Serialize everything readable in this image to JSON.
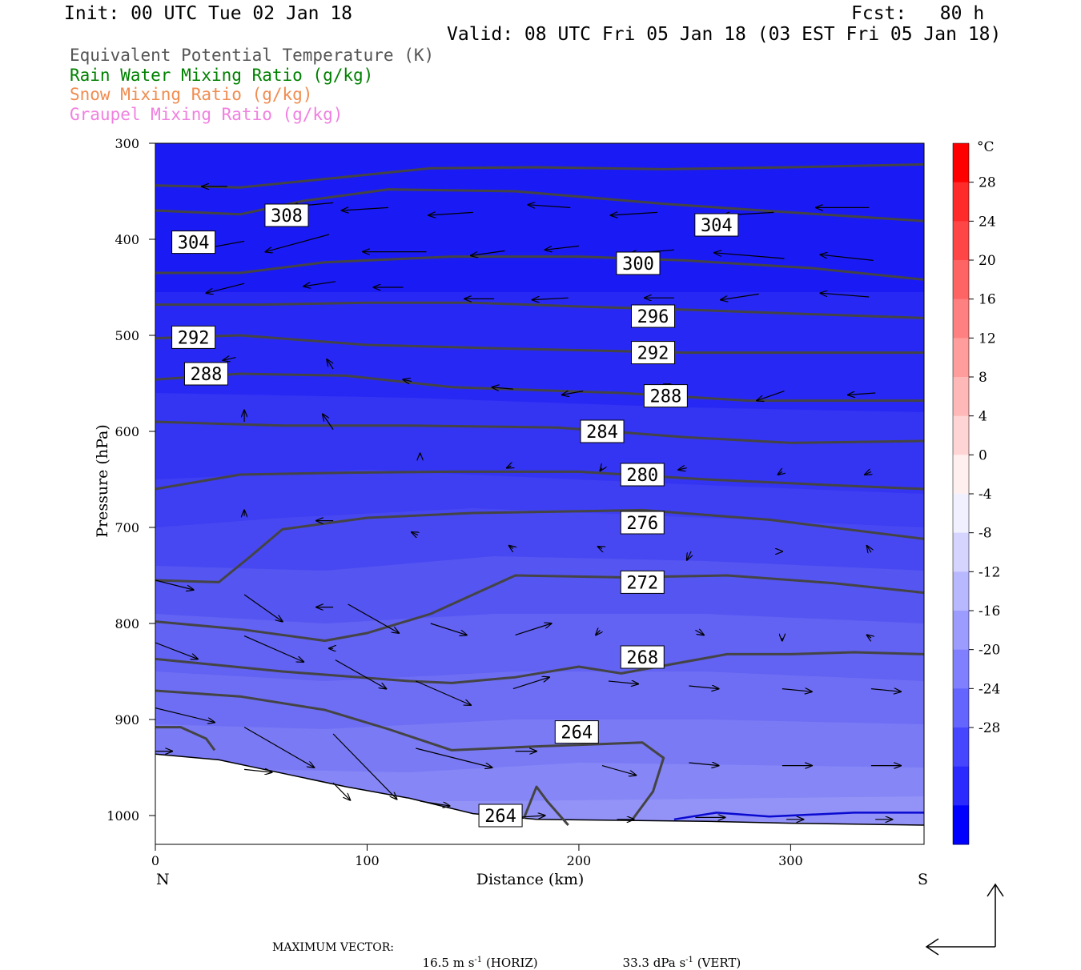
{
  "header": {
    "init": "Init: 00 UTC Tue 02 Jan 18",
    "fcst": "Fcst:   80 h",
    "valid": "Valid: 08 UTC Fri 05 Jan 18 (03 EST Fri 05 Jan 18)"
  },
  "legend": [
    {
      "label": "Equivalent Potential Temperature (K)",
      "color": "#555555"
    },
    {
      "label": "Rain Water Mixing Ratio (g/kg)",
      "color": "#008000"
    },
    {
      "label": "Snow Mixing Ratio (g/kg)",
      "color": "#f08c50"
    },
    {
      "label": "Graupel Mixing Ratio (g/kg)",
      "color": "#f080e0"
    }
  ],
  "footer": {
    "max_vector_label": "MAXIMUM VECTOR:",
    "horiz_value": "16.5 m s",
    "horiz_unit_exp": "-1",
    "horiz_tag": "(HORIZ)",
    "vert_value": "33.3 dPa s",
    "vert_unit_exp": "-1",
    "vert_tag": "(VERT)"
  },
  "chart_data": {
    "type": "cross-section contour",
    "xlabel": "Distance (km)",
    "ylabel": "Pressure (hPa)",
    "xlim": [
      0,
      363
    ],
    "ylim": [
      1030,
      300
    ],
    "xticks": [
      0,
      100,
      200,
      300
    ],
    "yticks": [
      300,
      400,
      500,
      600,
      700,
      800,
      900,
      1000
    ],
    "x_end_labels": {
      "left": "N",
      "right": "S"
    },
    "colorbar": {
      "unit": "°C",
      "labels": [
        "28",
        "24",
        "20",
        "16",
        "12",
        "8",
        "4",
        "0",
        "-4",
        "-8",
        "-12",
        "-16",
        "-20",
        "-24",
        "-28"
      ],
      "levels": [
        28,
        24,
        20,
        16,
        12,
        8,
        4,
        0,
        -4,
        -8,
        -12,
        -16,
        -20,
        -24,
        -28
      ],
      "colors": [
        "#ff0000",
        "#ff2a2a",
        "#ff4646",
        "#ff6464",
        "#ff8080",
        "#ff9c9c",
        "#ffb8b8",
        "#ffd4d4",
        "#fff0f0",
        "#f0f0ff",
        "#d4d4ff",
        "#b8b8ff",
        "#9c9cff",
        "#8080ff",
        "#6464ff",
        "#4646ff",
        "#2a2aff",
        "#0000ff"
      ]
    },
    "theta_e_contours": [
      {
        "label": "308",
        "points": [
          [
            0,
            344
          ],
          [
            40,
            346
          ],
          [
            90,
            335
          ],
          [
            130,
            326
          ],
          [
            180,
            325
          ],
          [
            240,
            327
          ],
          [
            300,
            325
          ],
          [
            363,
            322
          ]
        ]
      },
      {
        "label": "304",
        "points": [
          [
            0,
            370
          ],
          [
            40,
            374
          ],
          [
            70,
            360
          ],
          [
            110,
            348
          ],
          [
            170,
            350
          ],
          [
            240,
            363
          ],
          [
            300,
            372
          ],
          [
            363,
            381
          ]
        ]
      },
      {
        "label": "300",
        "points": [
          [
            0,
            435
          ],
          [
            40,
            435
          ],
          [
            80,
            424
          ],
          [
            140,
            418
          ],
          [
            200,
            418
          ],
          [
            250,
            422
          ],
          [
            310,
            430
          ],
          [
            363,
            442
          ]
        ]
      },
      {
        "label": "296",
        "points": [
          [
            0,
            468
          ],
          [
            50,
            468
          ],
          [
            100,
            466
          ],
          [
            150,
            466
          ],
          [
            200,
            470
          ],
          [
            260,
            474
          ],
          [
            310,
            478
          ],
          [
            363,
            482
          ]
        ]
      },
      {
        "label": "292",
        "points": [
          [
            0,
            503
          ],
          [
            40,
            500
          ],
          [
            100,
            510
          ],
          [
            170,
            514
          ],
          [
            250,
            518
          ],
          [
            310,
            518
          ],
          [
            363,
            518
          ]
        ]
      },
      {
        "label": "288",
        "points": [
          [
            0,
            546
          ],
          [
            40,
            540
          ],
          [
            90,
            542
          ],
          [
            140,
            554
          ],
          [
            220,
            560
          ],
          [
            280,
            568
          ],
          [
            363,
            568
          ]
        ]
      },
      {
        "label": "284",
        "points": [
          [
            0,
            590
          ],
          [
            60,
            594
          ],
          [
            120,
            594
          ],
          [
            190,
            596
          ],
          [
            250,
            606
          ],
          [
            300,
            612
          ],
          [
            363,
            610
          ]
        ]
      },
      {
        "label": "280",
        "points": [
          [
            0,
            660
          ],
          [
            40,
            645
          ],
          [
            90,
            643
          ],
          [
            140,
            642
          ],
          [
            200,
            642
          ],
          [
            260,
            650
          ],
          [
            320,
            656
          ],
          [
            363,
            660
          ]
        ]
      },
      {
        "label": "276",
        "points": [
          [
            0,
            755
          ],
          [
            30,
            757
          ],
          [
            45,
            730
          ],
          [
            60,
            702
          ],
          [
            100,
            690
          ],
          [
            150,
            685
          ],
          [
            230,
            682
          ],
          [
            290,
            692
          ],
          [
            363,
            712
          ]
        ]
      },
      {
        "label": "272",
        "points": [
          [
            0,
            798
          ],
          [
            40,
            806
          ],
          [
            80,
            818
          ],
          [
            100,
            810
          ],
          [
            130,
            790
          ],
          [
            150,
            770
          ],
          [
            170,
            750
          ],
          [
            220,
            752
          ],
          [
            270,
            750
          ],
          [
            320,
            758
          ],
          [
            363,
            768
          ]
        ]
      },
      {
        "label": "268",
        "points": [
          [
            0,
            837
          ],
          [
            60,
            850
          ],
          [
            120,
            860
          ],
          [
            140,
            862
          ],
          [
            170,
            856
          ],
          [
            200,
            845
          ],
          [
            220,
            852
          ],
          [
            245,
            842
          ],
          [
            270,
            832
          ],
          [
            300,
            832
          ],
          [
            330,
            830
          ],
          [
            363,
            832
          ]
        ]
      },
      {
        "label": "264",
        "points": [
          [
            0,
            870
          ],
          [
            40,
            876
          ],
          [
            80,
            890
          ],
          [
            110,
            910
          ],
          [
            140,
            932
          ],
          [
            180,
            928
          ],
          [
            230,
            924
          ],
          [
            240,
            940
          ],
          [
            235,
            975
          ],
          [
            225,
            1005
          ]
        ]
      },
      {
        "label": "264",
        "points": [
          [
            174,
            1003
          ],
          [
            180,
            970
          ],
          [
            185,
            985
          ],
          [
            195,
            1010
          ]
        ]
      },
      {
        "points": [
          [
            0,
            908
          ],
          [
            12,
            908
          ],
          [
            24,
            920
          ],
          [
            28,
            932
          ]
        ]
      }
    ],
    "theta_e_label_positions_km": [
      [
        62,
        308
      ],
      [
        18,
        304
      ],
      [
        265,
        304
      ],
      [
        228,
        300
      ],
      [
        235,
        296
      ],
      [
        18,
        292
      ],
      [
        235,
        292
      ],
      [
        24,
        288
      ],
      [
        241,
        288
      ],
      [
        211,
        284
      ],
      [
        230,
        280
      ],
      [
        230,
        276
      ],
      [
        230,
        272
      ],
      [
        230,
        268
      ],
      [
        199,
        264
      ],
      [
        163,
        264
      ]
    ],
    "rain_water_contour": {
      "label": "",
      "points": [
        [
          245,
          1004
        ],
        [
          265,
          997
        ],
        [
          290,
          1001
        ],
        [
          330,
          997
        ],
        [
          363,
          997
        ]
      ]
    },
    "ground_pressure": [
      [
        0,
        936
      ],
      [
        30,
        942
      ],
      [
        60,
        956
      ],
      [
        90,
        970
      ],
      [
        120,
        982
      ],
      [
        150,
        998
      ],
      [
        180,
        1004
      ],
      [
        220,
        1005
      ],
      [
        260,
        1006
      ],
      [
        300,
        1008
      ],
      [
        363,
        1010
      ]
    ]
  }
}
